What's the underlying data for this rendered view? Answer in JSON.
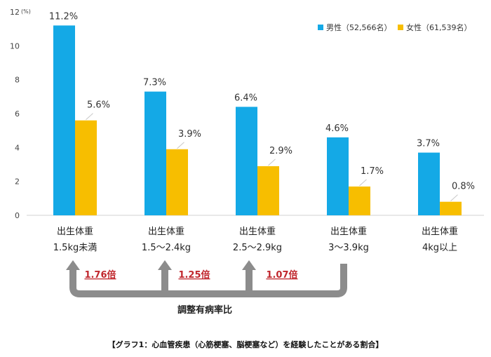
{
  "chart_data": {
    "type": "bar",
    "unit_label": "(%)",
    "ylim": [
      0,
      12
    ],
    "yticks": [
      0,
      2,
      4,
      6,
      8,
      10,
      12
    ],
    "grid": false,
    "legend_position": "top-right",
    "categories": [
      {
        "line1": "出生体重",
        "line2": "1.5kg未満"
      },
      {
        "line1": "出生体重",
        "line2": "1.5～2.4kg"
      },
      {
        "line1": "出生体重",
        "line2": "2.5～2.9kg"
      },
      {
        "line1": "出生体重",
        "line2": "3～3.9kg"
      },
      {
        "line1": "出生体重",
        "line2": "4kg以上"
      }
    ],
    "series": [
      {
        "name": "男性（52,566名）",
        "color": "#14A9E6",
        "values": [
          11.2,
          7.3,
          6.4,
          4.6,
          3.7
        ],
        "labels": [
          "11.2%",
          "7.3%",
          "6.4%",
          "4.6%",
          "3.7%"
        ]
      },
      {
        "name": "女性（61,539名）",
        "color": "#F7BE00",
        "values": [
          5.6,
          3.9,
          2.9,
          1.7,
          0.8
        ],
        "labels": [
          "5.6%",
          "3.9%",
          "2.9%",
          "1.7%",
          "0.8%"
        ]
      }
    ],
    "ratios": [
      "1.76倍",
      "1.25倍",
      "1.07倍"
    ],
    "ratio_color": "#C0272D",
    "arrow_color": "#8C8C8C",
    "bracket_label": "調整有病率比"
  },
  "caption": "【グラフ1：心血管疾患（心筋梗塞、脳梗塞など）を経験したことがある割合】"
}
